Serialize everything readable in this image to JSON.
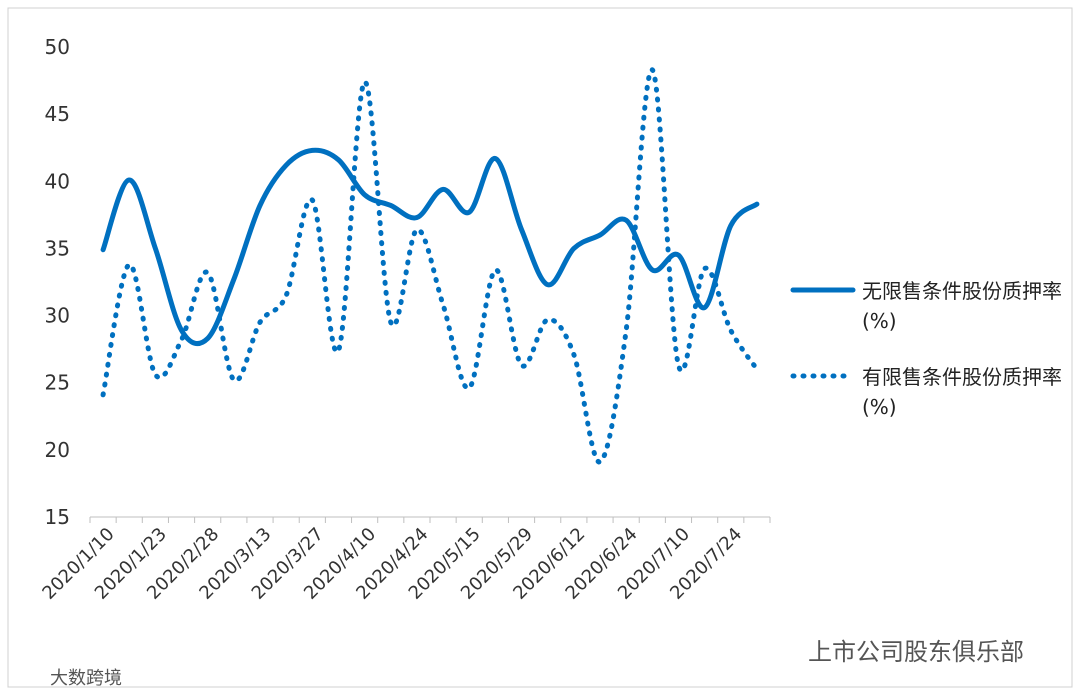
{
  "chart_data": {
    "type": "line",
    "categories": [
      "2020/1/10",
      null,
      "2020/1/23",
      null,
      "2020/2/28",
      null,
      "2020/3/13",
      null,
      "2020/3/27",
      null,
      "2020/4/10",
      null,
      "2020/4/24",
      null,
      "2020/5/15",
      null,
      "2020/5/29",
      null,
      "2020/6/12",
      null,
      "2020/6/24",
      null,
      "2020/7/10",
      null,
      "2020/7/24",
      null
    ],
    "series": [
      {
        "name": "无限售条件股份质押率(%)",
        "color": "#0070c0",
        "style": "solid",
        "values": [
          34.9,
          40.1,
          35,
          28.9,
          28.3,
          32.7,
          38.2,
          41.2,
          42.3,
          41.6,
          39,
          38.2,
          37.3,
          39.4,
          37.7,
          41.7,
          36.4,
          32.3,
          35,
          36,
          37.1,
          33.4,
          34.5,
          30.6,
          36.7,
          38.3
        ]
      },
      {
        "name": "有限售条件股份质押率(%)",
        "color": "#0070c0",
        "style": "dotted",
        "values": [
          24.1,
          33.8,
          25.6,
          28.2,
          33.2,
          25.2,
          29.5,
          31.5,
          38.6,
          27.4,
          47.4,
          29.5,
          36.4,
          30.8,
          24.6,
          33.4,
          26.3,
          29.7,
          27.1,
          19.1,
          28.9,
          48.3,
          26.3,
          33.5,
          28.9,
          26
        ]
      }
    ],
    "ylim": [
      15,
      50
    ],
    "yticks": [
      15,
      20,
      25,
      30,
      35,
      40,
      45,
      50
    ],
    "grid": false,
    "legend": "right"
  },
  "watermarks": [
    "上市公司股东俱乐部",
    "大数跨境"
  ]
}
